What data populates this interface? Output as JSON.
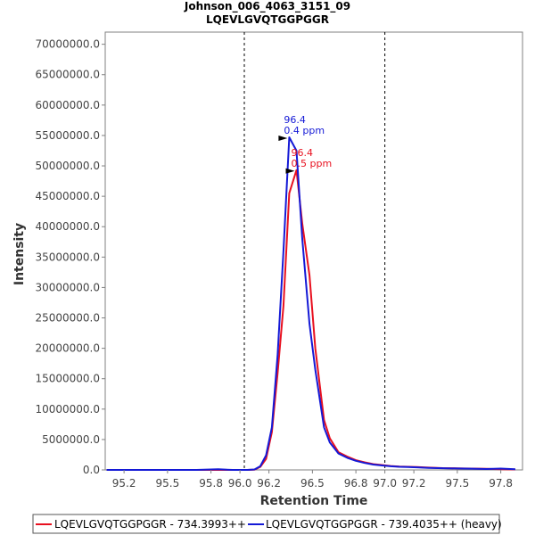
{
  "chart_data": {
    "type": "line",
    "title": "Johnson_006_4063_3151_09",
    "subtitle": "LQEVLGVQTGGPGGR",
    "xlabel": "Retention Time",
    "ylabel": "Intensity",
    "xlim": [
      95.07,
      97.95
    ],
    "ylim": [
      0,
      72000000
    ],
    "xticks": [
      95.2,
      95.5,
      95.8,
      96.0,
      96.2,
      96.5,
      96.8,
      97.0,
      97.2,
      97.5,
      97.8
    ],
    "xtick_labels": [
      "95.2",
      "95.5",
      "95.8",
      "96.0",
      "96.2",
      "96.5",
      "96.8",
      "97.0",
      "97.2",
      "97.5",
      "97.8"
    ],
    "yticks": [
      0,
      5000000,
      10000000,
      15000000,
      20000000,
      25000000,
      30000000,
      35000000,
      40000000,
      45000000,
      50000000,
      55000000,
      60000000,
      65000000,
      70000000
    ],
    "ytick_labels": [
      "0.0",
      "5000000.0",
      "10000000.0",
      "15000000.0",
      "20000000.0",
      "25000000.0",
      "30000000.0",
      "35000000.0",
      "40000000.0",
      "45000000.0",
      "50000000.0",
      "55000000.0",
      "60000000.0",
      "65000000.0",
      "70000000.0"
    ],
    "grid": false,
    "legend_position": "bottom",
    "boundaries": [
      96.03,
      97.0
    ],
    "series": [
      {
        "name": "LQEVLGVQTGGPGGR - 734.3993++",
        "color": "#e8101f",
        "x": [
          95.08,
          95.3,
          95.5,
          95.7,
          95.85,
          95.95,
          96.05,
          96.1,
          96.14,
          96.18,
          96.22,
          96.26,
          96.3,
          96.34,
          96.39,
          96.43,
          96.48,
          96.52,
          96.58,
          96.62,
          96.68,
          96.74,
          96.8,
          96.86,
          96.92,
          96.98,
          97.04,
          97.1,
          97.16,
          97.22,
          97.3,
          97.4,
          97.5,
          97.6,
          97.7,
          97.8,
          97.9
        ],
        "y": [
          0,
          0,
          0,
          0,
          0,
          0,
          0,
          50000,
          500000,
          1800000,
          6200000,
          16000000,
          27000000,
          45500000,
          49300000,
          40500000,
          32000000,
          20000000,
          8200000,
          5200000,
          2900000,
          2200000,
          1600000,
          1250000,
          950000,
          800000,
          650000,
          550000,
          520000,
          470000,
          380000,
          300000,
          260000,
          220000,
          180000,
          120000,
          80000
        ]
      },
      {
        "name": "LQEVLGVQTGGPGGR - 739.4035++ (heavy)",
        "color": "#1419d6",
        "x": [
          95.08,
          95.3,
          95.5,
          95.7,
          95.85,
          95.95,
          96.05,
          96.1,
          96.14,
          96.18,
          96.22,
          96.26,
          96.3,
          96.34,
          96.39,
          96.43,
          96.48,
          96.52,
          96.58,
          96.62,
          96.68,
          96.74,
          96.8,
          96.86,
          96.92,
          96.98,
          97.04,
          97.1,
          97.16,
          97.22,
          97.3,
          97.4,
          97.5,
          97.6,
          97.7,
          97.8,
          97.9
        ],
        "y": [
          0,
          0,
          0,
          0,
          100000,
          0,
          0,
          80000,
          600000,
          2400000,
          7000000,
          19000000,
          36000000,
          54700000,
          52500000,
          38000000,
          24000000,
          16500000,
          7000000,
          4500000,
          2700000,
          2000000,
          1500000,
          1150000,
          880000,
          740000,
          600000,
          520000,
          480000,
          420000,
          340000,
          280000,
          240000,
          200000,
          150000,
          220000,
          100000
        ]
      }
    ],
    "annotations": [
      {
        "series": 1,
        "x": 96.34,
        "y": 54700000,
        "line1": "96.4",
        "line2": "0.4 ppm",
        "color": "#1419d6"
      },
      {
        "series": 0,
        "x": 96.39,
        "y": 49300000,
        "line1": "96.4",
        "line2": "0.5 ppm",
        "color": "#e8101f"
      }
    ]
  }
}
